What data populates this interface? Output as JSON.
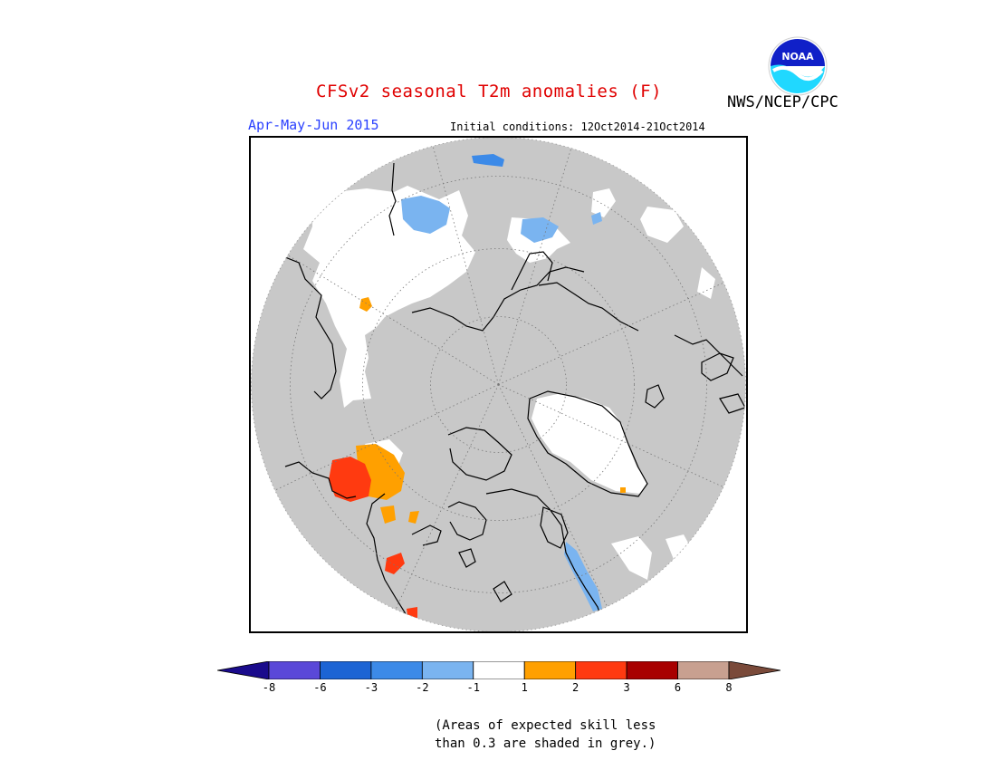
{
  "title": "CFSv2 seasonal T2m anomalies (F)",
  "agency": "NWS/NCEP/CPC",
  "logo_text": "NOAA",
  "season": "Apr-May-Jun 2015",
  "initial_conditions": "Initial conditions: 12Oct2014-21Oct2014",
  "colors": {
    "title": "#e00000",
    "season": "#2a40ff",
    "grey_mask": "#c8c8c8",
    "coast": "#000000",
    "near_normal": "#ffffff",
    "light_blue": "#7ab4f0",
    "blue": "#3c8ae8",
    "orange": "#ffa000",
    "red_orange": "#ff3a10"
  },
  "colorbar": {
    "colors": [
      "#1a0b8c",
      "#5a48d8",
      "#1c64d4",
      "#3c8ae8",
      "#7ab4f0",
      "#ffffff",
      "#ffa000",
      "#ff3a10",
      "#a80000",
      "#c8a090",
      "#7a4a3a"
    ],
    "ticks": [
      "-8",
      "-6",
      "-3",
      "-2",
      "-1",
      "1",
      "2",
      "3",
      "6",
      "8"
    ]
  },
  "note_line1": "(Areas of expected skill less",
  "note_line2": "than 0.3 are shaded in grey.)"
}
